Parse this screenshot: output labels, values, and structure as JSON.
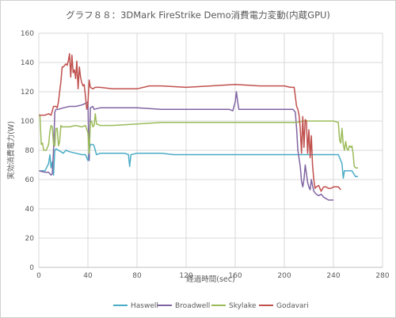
{
  "chart_data": {
    "type": "line",
    "title": "グラフ８８：3DMark FireStrike Demo消費電力変動(内蔵GPU)",
    "xlabel": "経過時間(sec)",
    "ylabel": "実効消費電力(W)",
    "xlim": [
      0,
      280
    ],
    "ylim": [
      0,
      160
    ],
    "xticks": [
      0,
      40,
      80,
      120,
      160,
      200,
      240,
      280
    ],
    "yticks": [
      0,
      20,
      40,
      60,
      80,
      100,
      120,
      140,
      160
    ],
    "grid": true,
    "legend_position": "bottom",
    "series": [
      {
        "name": "Haswell",
        "color": "#4bacc6",
        "points": [
          [
            0,
            66
          ],
          [
            5,
            66
          ],
          [
            8,
            71
          ],
          [
            9,
            77
          ],
          [
            10,
            68
          ],
          [
            11,
            72
          ],
          [
            12,
            63
          ],
          [
            13,
            80
          ],
          [
            14,
            81
          ],
          [
            16,
            80
          ],
          [
            18,
            79
          ],
          [
            20,
            78
          ],
          [
            22,
            80
          ],
          [
            25,
            79
          ],
          [
            30,
            78
          ],
          [
            35,
            77
          ],
          [
            38,
            77
          ],
          [
            40,
            73
          ],
          [
            41,
            79
          ],
          [
            42,
            84
          ],
          [
            44,
            84
          ],
          [
            45,
            83
          ],
          [
            47,
            77
          ],
          [
            50,
            78
          ],
          [
            60,
            78
          ],
          [
            70,
            78
          ],
          [
            73,
            77
          ],
          [
            74,
            69
          ],
          [
            75,
            77
          ],
          [
            80,
            78
          ],
          [
            100,
            78
          ],
          [
            110,
            77
          ],
          [
            120,
            77
          ],
          [
            140,
            77
          ],
          [
            160,
            77
          ],
          [
            180,
            77
          ],
          [
            200,
            77
          ],
          [
            210,
            77
          ],
          [
            220,
            77
          ],
          [
            230,
            77
          ],
          [
            236,
            77
          ],
          [
            240,
            77
          ],
          [
            244,
            77
          ],
          [
            247,
            71
          ],
          [
            248,
            61
          ],
          [
            249,
            66
          ],
          [
            250,
            66
          ],
          [
            252,
            66
          ],
          [
            255,
            66
          ],
          [
            258,
            62
          ],
          [
            260,
            62
          ]
        ]
      },
      {
        "name": "Broadwell",
        "color": "#8064a2",
        "points": [
          [
            0,
            66
          ],
          [
            5,
            65
          ],
          [
            8,
            65
          ],
          [
            10,
            63
          ],
          [
            11,
            64
          ],
          [
            12,
            80
          ],
          [
            13,
            106
          ],
          [
            14,
            108
          ],
          [
            16,
            108
          ],
          [
            20,
            109
          ],
          [
            25,
            110
          ],
          [
            30,
            110
          ],
          [
            35,
            111
          ],
          [
            38,
            112
          ],
          [
            40,
            113
          ],
          [
            41,
            73
          ],
          [
            42,
            109
          ],
          [
            44,
            110
          ],
          [
            45,
            108
          ],
          [
            50,
            109
          ],
          [
            60,
            109
          ],
          [
            80,
            109
          ],
          [
            100,
            108
          ],
          [
            120,
            108
          ],
          [
            140,
            108
          ],
          [
            150,
            108
          ],
          [
            155,
            108
          ],
          [
            158,
            107
          ],
          [
            160,
            113
          ],
          [
            161,
            120
          ],
          [
            162,
            113
          ],
          [
            163,
            108
          ],
          [
            170,
            108
          ],
          [
            180,
            108
          ],
          [
            200,
            108
          ],
          [
            205,
            108
          ],
          [
            207,
            108
          ],
          [
            209,
            106
          ],
          [
            210,
            95
          ],
          [
            211,
            80
          ],
          [
            213,
            69
          ],
          [
            214,
            59
          ],
          [
            215,
            55
          ],
          [
            216,
            60
          ],
          [
            217,
            70
          ],
          [
            218,
            64
          ],
          [
            219,
            58
          ],
          [
            220,
            55
          ],
          [
            221,
            53
          ],
          [
            222,
            60
          ],
          [
            223,
            56
          ],
          [
            224,
            52
          ],
          [
            225,
            51
          ],
          [
            226,
            50
          ],
          [
            228,
            49
          ],
          [
            230,
            50
          ],
          [
            232,
            48
          ],
          [
            234,
            47
          ],
          [
            236,
            46
          ],
          [
            240,
            46
          ]
        ]
      },
      {
        "name": "Skylake",
        "color": "#9bbb59",
        "points": [
          [
            0,
            105
          ],
          [
            1,
            103
          ],
          [
            2,
            84
          ],
          [
            3,
            85
          ],
          [
            4,
            80
          ],
          [
            6,
            80
          ],
          [
            8,
            84
          ],
          [
            9,
            93
          ],
          [
            10,
            97
          ],
          [
            11,
            96
          ],
          [
            12,
            84
          ],
          [
            13,
            83
          ],
          [
            14,
            95
          ],
          [
            15,
            95
          ],
          [
            16,
            83
          ],
          [
            17,
            86
          ],
          [
            18,
            97
          ],
          [
            19,
            96
          ],
          [
            20,
            96
          ],
          [
            25,
            96
          ],
          [
            30,
            97
          ],
          [
            35,
            96
          ],
          [
            38,
            97
          ],
          [
            40,
            92
          ],
          [
            41,
            78
          ],
          [
            42,
            99
          ],
          [
            43,
            100
          ],
          [
            44,
            96
          ],
          [
            45,
            97
          ],
          [
            46,
            105
          ],
          [
            47,
            98
          ],
          [
            50,
            97
          ],
          [
            60,
            97
          ],
          [
            80,
            98
          ],
          [
            100,
            99
          ],
          [
            120,
            99
          ],
          [
            140,
            99
          ],
          [
            160,
            99
          ],
          [
            180,
            99
          ],
          [
            200,
            99
          ],
          [
            205,
            99
          ],
          [
            210,
            99
          ],
          [
            215,
            100
          ],
          [
            220,
            100
          ],
          [
            230,
            100
          ],
          [
            240,
            100
          ],
          [
            244,
            99
          ],
          [
            245,
            87
          ],
          [
            246,
            85
          ],
          [
            247,
            95
          ],
          [
            248,
            84
          ],
          [
            249,
            80
          ],
          [
            250,
            86
          ],
          [
            251,
            81
          ],
          [
            252,
            80
          ],
          [
            253,
            83
          ],
          [
            254,
            82
          ],
          [
            255,
            83
          ],
          [
            256,
            78
          ],
          [
            257,
            69
          ],
          [
            258,
            68
          ],
          [
            260,
            68
          ]
        ]
      },
      {
        "name": "Godavari",
        "color": "#c0504d",
        "points": [
          [
            0,
            104
          ],
          [
            5,
            104
          ],
          [
            8,
            105
          ],
          [
            10,
            104
          ],
          [
            12,
            110
          ],
          [
            14,
            110
          ],
          [
            15,
            109
          ],
          [
            16,
            113
          ],
          [
            17,
            120
          ],
          [
            18,
            127
          ],
          [
            19,
            137
          ],
          [
            20,
            137
          ],
          [
            21,
            138
          ],
          [
            22,
            139
          ],
          [
            23,
            138
          ],
          [
            24,
            141
          ],
          [
            25,
            146
          ],
          [
            26,
            130
          ],
          [
            27,
            145
          ],
          [
            28,
            133
          ],
          [
            29,
            135
          ],
          [
            30,
            129
          ],
          [
            31,
            141
          ],
          [
            32,
            122
          ],
          [
            33,
            137
          ],
          [
            34,
            130
          ],
          [
            35,
            126
          ],
          [
            36,
            124
          ],
          [
            37,
            125
          ],
          [
            38,
            117
          ],
          [
            39,
            108
          ],
          [
            40,
            112
          ],
          [
            41,
            128
          ],
          [
            42,
            123
          ],
          [
            44,
            122
          ],
          [
            46,
            123
          ],
          [
            50,
            123
          ],
          [
            60,
            122
          ],
          [
            70,
            122
          ],
          [
            80,
            122
          ],
          [
            90,
            124
          ],
          [
            100,
            124
          ],
          [
            120,
            123
          ],
          [
            140,
            124
          ],
          [
            160,
            125
          ],
          [
            180,
            124
          ],
          [
            200,
            124
          ],
          [
            205,
            123
          ],
          [
            208,
            123
          ],
          [
            210,
            110
          ],
          [
            211,
            108
          ],
          [
            212,
            104
          ],
          [
            213,
            95
          ],
          [
            214,
            78
          ],
          [
            215,
            103
          ],
          [
            216,
            82
          ],
          [
            217,
            101
          ],
          [
            218,
            100
          ],
          [
            219,
            78
          ],
          [
            220,
            94
          ],
          [
            221,
            75
          ],
          [
            222,
            90
          ],
          [
            223,
            70
          ],
          [
            224,
            60
          ],
          [
            225,
            54
          ],
          [
            226,
            55
          ],
          [
            228,
            56
          ],
          [
            230,
            52
          ],
          [
            232,
            55
          ],
          [
            234,
            55
          ],
          [
            236,
            54
          ],
          [
            238,
            54
          ],
          [
            240,
            55
          ],
          [
            242,
            55
          ],
          [
            244,
            55
          ],
          [
            246,
            53
          ]
        ]
      }
    ]
  }
}
